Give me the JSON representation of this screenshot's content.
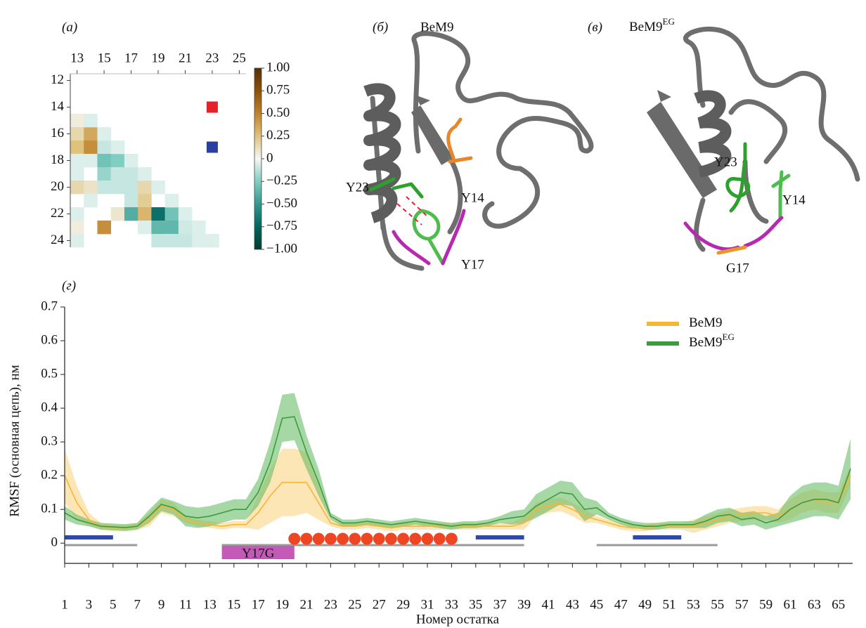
{
  "chart_data": [
    {
      "type": "heatmap",
      "panel": "(а)",
      "x": [
        13,
        13,
        14,
        13,
        14,
        15,
        13,
        14,
        15,
        16,
        13,
        15,
        16,
        17,
        13,
        14,
        15,
        16,
        17,
        18,
        14,
        17,
        18,
        13,
        16,
        17,
        18,
        19,
        20,
        13,
        15,
        18,
        19,
        20,
        13,
        19,
        20,
        21,
        14,
        15,
        16,
        17,
        18,
        19,
        20,
        21,
        22,
        23,
        21,
        22
      ],
      "y": [
        15,
        16,
        16,
        17,
        17,
        17,
        18,
        18,
        18,
        18,
        19,
        19,
        19,
        19,
        20,
        20,
        20,
        20,
        20,
        20,
        21,
        21,
        21,
        22,
        22,
        22,
        22,
        22,
        22,
        23,
        23,
        23,
        23,
        23,
        24,
        24,
        24,
        24,
        15,
        16,
        17,
        18,
        19,
        20,
        21,
        22,
        23,
        24,
        23,
        24
      ],
      "values": [
        0.05,
        0.15,
        0.35,
        0.25,
        0.45,
        -0.1,
        -0.05,
        -0.05,
        -0.3,
        -0.25,
        -0.05,
        -0.2,
        -0.1,
        -0.1,
        0.15,
        0.1,
        -0.1,
        -0.1,
        -0.1,
        0.15,
        -0.05,
        -0.1,
        0.2,
        -0.05,
        0.08,
        -0.4,
        0.3,
        -0.7,
        -0.3,
        0.05,
        0.45,
        -0.05,
        -0.35,
        -0.35,
        -0.05,
        -0.1,
        -0.1,
        -0.1,
        -0.05,
        -0.05,
        -0.05,
        -0.05,
        -0.05,
        -0.05,
        -0.05,
        -0.05,
        -0.05,
        -0.05,
        -0.08,
        -0.05
      ],
      "markers": [
        {
          "x": 23,
          "y": 14,
          "color": "#e8202a"
        },
        {
          "x": 23,
          "y": 17,
          "color": "#2b3f9e"
        }
      ],
      "xlim": [
        12.5,
        25.5
      ],
      "xticks": [
        13,
        15,
        17,
        19,
        21,
        23,
        25
      ],
      "ylim": [
        11.5,
        24.5
      ],
      "yticks": [
        12,
        14,
        16,
        18,
        20,
        22,
        24
      ],
      "y_inverted": true,
      "clim": [
        -1,
        1
      ],
      "colormap": [
        "#003c30",
        "#01665e",
        "#35978f",
        "#80cdc1",
        "#f4f7f6",
        "#dfc27d",
        "#bf812d",
        "#8c510a",
        "#543005"
      ],
      "cticks": [
        {
          "value": 1,
          "label": "1.00"
        },
        {
          "value": 0.75,
          "label": "0.75"
        },
        {
          "value": 0.5,
          "label": "0.50"
        },
        {
          "value": 0.25,
          "label": "0.25"
        },
        0,
        {
          "value": -0.25,
          "label": "−0.25"
        },
        {
          "value": -0.5,
          "label": "−0.50"
        },
        {
          "value": -0.75,
          "label": "−0.75"
        },
        {
          "value": -1,
          "label": "−1.00"
        }
      ]
    },
    {
      "type": "line",
      "panel": "(г)",
      "x_label": "Номер остатка",
      "y_label": "RMSF (основная цепь), нм",
      "x": [
        1,
        2,
        3,
        4,
        5,
        6,
        7,
        8,
        9,
        10,
        11,
        12,
        13,
        14,
        15,
        16,
        17,
        18,
        19,
        20,
        21,
        22,
        23,
        24,
        25,
        26,
        27,
        28,
        29,
        30,
        31,
        32,
        33,
        34,
        35,
        36,
        37,
        38,
        39,
        40,
        41,
        42,
        43,
        44,
        45,
        46,
        47,
        48,
        49,
        50,
        51,
        52,
        53,
        54,
        55,
        56,
        57,
        58,
        59,
        60,
        61,
        62,
        63,
        64,
        65,
        66
      ],
      "series": [
        {
          "name": "BeM9",
          "color": "#f7b535",
          "band_color": "#fcd27a",
          "values": [
            0.2,
            0.12,
            0.07,
            0.05,
            0.045,
            0.045,
            0.05,
            0.07,
            0.11,
            0.1,
            0.07,
            0.06,
            0.055,
            0.05,
            0.055,
            0.055,
            0.09,
            0.14,
            0.18,
            0.18,
            0.18,
            0.12,
            0.06,
            0.05,
            0.05,
            0.055,
            0.05,
            0.045,
            0.05,
            0.05,
            0.05,
            0.05,
            0.05,
            0.05,
            0.05,
            0.05,
            0.05,
            0.05,
            0.06,
            0.1,
            0.11,
            0.115,
            0.1,
            0.08,
            0.07,
            0.06,
            0.05,
            0.045,
            0.045,
            0.05,
            0.05,
            0.05,
            0.05,
            0.06,
            0.07,
            0.08,
            0.085,
            0.09,
            0.09,
            0.08,
            0.1,
            0.12,
            0.13,
            0.12,
            0.12,
            0.2
          ],
          "errors": [
            0.08,
            0.05,
            0.02,
            0.01,
            0.01,
            0.01,
            0.01,
            0.02,
            0.02,
            0.02,
            0.01,
            0.01,
            0.01,
            0.01,
            0.01,
            0.01,
            0.05,
            0.08,
            0.1,
            0.1,
            0.09,
            0.05,
            0.01,
            0.01,
            0.01,
            0.01,
            0.01,
            0.01,
            0.01,
            0.01,
            0.01,
            0.01,
            0.01,
            0.01,
            0.01,
            0.01,
            0.01,
            0.01,
            0.02,
            0.02,
            0.02,
            0.02,
            0.02,
            0.02,
            0.01,
            0.01,
            0.01,
            0.01,
            0.01,
            0.01,
            0.01,
            0.01,
            0.02,
            0.02,
            0.02,
            0.02,
            0.02,
            0.02,
            0.02,
            0.02,
            0.03,
            0.03,
            0.03,
            0.03,
            0.03,
            0.03
          ]
        },
        {
          "name": "BeM9",
          "name_sup": "EG",
          "color": "#3d9a3d",
          "band_color": "#5cb85c",
          "values": [
            0.09,
            0.07,
            0.06,
            0.05,
            0.048,
            0.046,
            0.05,
            0.08,
            0.115,
            0.105,
            0.08,
            0.075,
            0.08,
            0.09,
            0.1,
            0.1,
            0.15,
            0.24,
            0.37,
            0.375,
            0.27,
            0.18,
            0.08,
            0.06,
            0.06,
            0.065,
            0.06,
            0.055,
            0.06,
            0.065,
            0.06,
            0.055,
            0.05,
            0.055,
            0.055,
            0.06,
            0.07,
            0.075,
            0.08,
            0.11,
            0.13,
            0.15,
            0.145,
            0.1,
            0.105,
            0.08,
            0.065,
            0.055,
            0.05,
            0.05,
            0.055,
            0.055,
            0.055,
            0.065,
            0.08,
            0.085,
            0.07,
            0.075,
            0.06,
            0.07,
            0.1,
            0.12,
            0.13,
            0.13,
            0.12,
            0.22
          ],
          "errors": [
            0.02,
            0.015,
            0.01,
            0.01,
            0.01,
            0.01,
            0.01,
            0.02,
            0.02,
            0.02,
            0.03,
            0.03,
            0.03,
            0.03,
            0.03,
            0.03,
            0.04,
            0.06,
            0.07,
            0.07,
            0.05,
            0.04,
            0.01,
            0.01,
            0.01,
            0.01,
            0.01,
            0.01,
            0.01,
            0.01,
            0.01,
            0.01,
            0.01,
            0.01,
            0.01,
            0.01,
            0.01,
            0.02,
            0.02,
            0.035,
            0.035,
            0.035,
            0.035,
            0.035,
            0.02,
            0.01,
            0.01,
            0.01,
            0.01,
            0.01,
            0.01,
            0.01,
            0.01,
            0.02,
            0.02,
            0.02,
            0.02,
            0.02,
            0.02,
            0.02,
            0.04,
            0.05,
            0.05,
            0.05,
            0.05,
            0.09
          ]
        }
      ],
      "xlim": [
        1,
        66
      ],
      "xticks": [
        1,
        3,
        5,
        7,
        9,
        11,
        13,
        15,
        17,
        19,
        21,
        23,
        25,
        27,
        29,
        31,
        33,
        35,
        37,
        39,
        41,
        43,
        45,
        47,
        49,
        51,
        53,
        55,
        57,
        59,
        61,
        63,
        65
      ],
      "ylim": [
        -0.06,
        0.7
      ],
      "yticks": [
        0,
        0.1,
        0.2,
        0.3,
        0.4,
        0.5,
        0.6,
        0.7
      ],
      "legend": "upper right",
      "annotations": {
        "loops": [
          [
            1,
            7
          ],
          [
            14,
            39
          ],
          [
            45,
            55
          ]
        ],
        "loop_color": "#9a9a9a",
        "strands": [
          [
            1,
            5
          ],
          [
            35,
            39
          ],
          [
            48,
            52
          ]
        ],
        "strand_color": "#2f4aa6",
        "contacts": [
          20,
          21,
          22,
          23,
          24,
          25,
          26,
          27,
          28,
          29,
          30,
          31,
          32,
          33
        ],
        "contact_color": "#ee4522",
        "mutation": {
          "range": [
            14,
            20
          ],
          "label": "Y17G",
          "color": "#c45ab8"
        }
      }
    }
  ],
  "structures": [
    {
      "panel": "(б)",
      "title": "BeM9",
      "residues": [
        "Y14",
        "Y23",
        "Y17"
      ]
    },
    {
      "panel": "(в)",
      "title": "BeM9",
      "title_sup": "EG",
      "residues": [
        "Y23",
        "Y14",
        "G17"
      ]
    }
  ]
}
